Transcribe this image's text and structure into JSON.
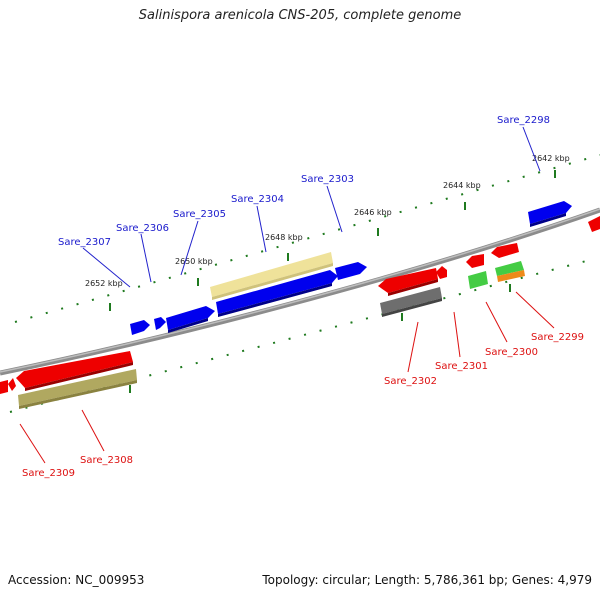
{
  "title": "Salinispora arenicola CNS-205, complete genome",
  "footer": {
    "accession": "Accession: NC_009953",
    "summary": "Topology: circular; Length: 5,786,361 bp; Genes: 4,979"
  },
  "scale_labels": [
    "2642 kbp",
    "2644 kbp",
    "2646 kbp",
    "2648 kbp",
    "2650 kbp",
    "2652 kbp"
  ],
  "forward_genes": [
    "Sare_2298",
    "Sare_2303",
    "Sare_2304",
    "Sare_2305",
    "Sare_2306",
    "Sare_2307"
  ],
  "reverse_genes": [
    "Sare_2299",
    "Sare_2300",
    "Sare_2301",
    "Sare_2302",
    "Sare_2308",
    "Sare_2309"
  ],
  "colors": {
    "forward_gene": "#0000ee",
    "reverse_gene": "#ee0000",
    "forward_label": "#1a1acc",
    "reverse_label": "#dd1111",
    "tick": "#1f7a1f",
    "backbone": "#8c8c8c",
    "feature_light": "#efe29a",
    "feature_olive": "#b0a860",
    "feature_gray": "#6e6e6e",
    "feature_green": "#44cc44",
    "feature_orange": "#ee8a1a"
  }
}
